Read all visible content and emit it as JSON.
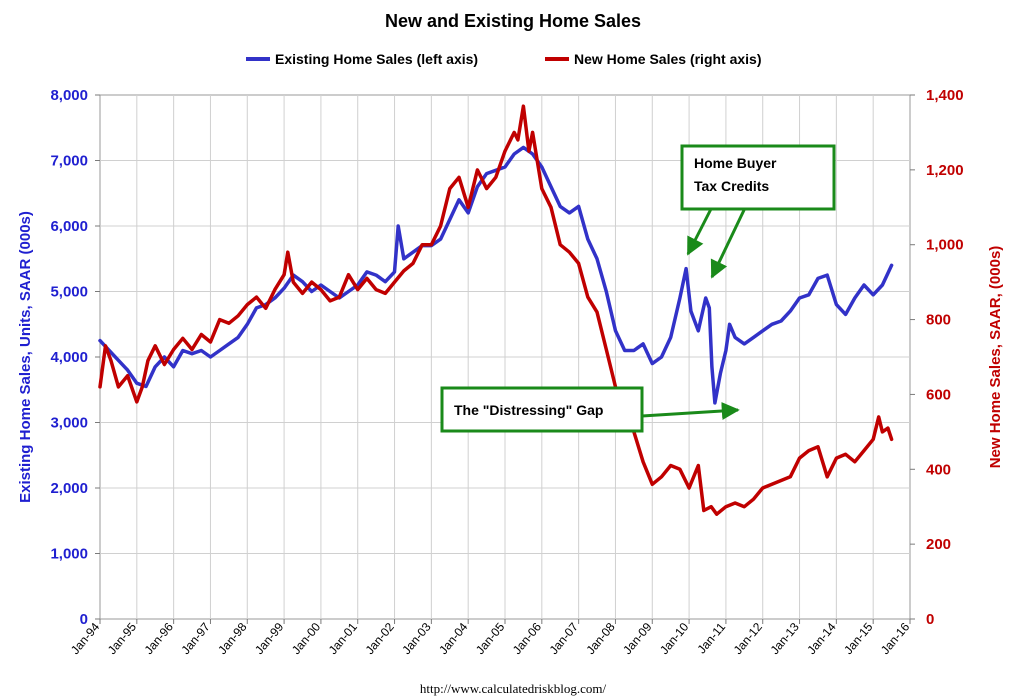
{
  "chart_data": {
    "type": "line",
    "title": "New and Existing Home Sales",
    "ylabel_left": "Existing Home Sales, Units, SAAR (000s)",
    "ylabel_right": "New Home Sales, SAAR, (000s)",
    "ylim_left": [
      0,
      8000
    ],
    "ylim_right": [
      0,
      1400
    ],
    "yticks_left": [
      "0",
      "1,000",
      "2,000",
      "3,000",
      "4,000",
      "5,000",
      "6,000",
      "7,000",
      "8,000"
    ],
    "yticks_right": [
      "0",
      "200",
      "400",
      "600",
      "800",
      "1,000",
      "1,200",
      "1,400"
    ],
    "xticks": [
      "Jan-94",
      "Jan-95",
      "Jan-96",
      "Jan-97",
      "Jan-98",
      "Jan-99",
      "Jan-00",
      "Jan-01",
      "Jan-02",
      "Jan-03",
      "Jan-04",
      "Jan-05",
      "Jan-06",
      "Jan-07",
      "Jan-08",
      "Jan-09",
      "Jan-10",
      "Jan-11",
      "Jan-12",
      "Jan-13",
      "Jan-14",
      "Jan-15",
      "Jan-16"
    ],
    "x_start": 1994.0,
    "x_end": 2016.0,
    "grid": true,
    "legend_position": "top",
    "series": [
      {
        "name": "Existing Home Sales (left axis)",
        "axis": "left",
        "color": "#3232c8",
        "points": [
          [
            1994.0,
            4250
          ],
          [
            1994.25,
            4100
          ],
          [
            1994.5,
            3950
          ],
          [
            1994.75,
            3800
          ],
          [
            1995.0,
            3600
          ],
          [
            1995.25,
            3550
          ],
          [
            1995.5,
            3850
          ],
          [
            1995.75,
            4000
          ],
          [
            1996.0,
            3850
          ],
          [
            1996.25,
            4100
          ],
          [
            1996.5,
            4050
          ],
          [
            1996.75,
            4100
          ],
          [
            1997.0,
            4000
          ],
          [
            1997.25,
            4100
          ],
          [
            1997.5,
            4200
          ],
          [
            1997.75,
            4300
          ],
          [
            1998.0,
            4500
          ],
          [
            1998.25,
            4750
          ],
          [
            1998.5,
            4800
          ],
          [
            1998.75,
            4900
          ],
          [
            1999.0,
            5050
          ],
          [
            1999.25,
            5250
          ],
          [
            1999.5,
            5150
          ],
          [
            1999.75,
            5000
          ],
          [
            2000.0,
            5100
          ],
          [
            2000.25,
            5000
          ],
          [
            2000.5,
            4900
          ],
          [
            2000.75,
            5000
          ],
          [
            2001.0,
            5100
          ],
          [
            2001.25,
            5300
          ],
          [
            2001.5,
            5250
          ],
          [
            2001.75,
            5150
          ],
          [
            2002.0,
            5300
          ],
          [
            2002.1,
            6000
          ],
          [
            2002.25,
            5500
          ],
          [
            2002.5,
            5600
          ],
          [
            2002.75,
            5700
          ],
          [
            2003.0,
            5700
          ],
          [
            2003.25,
            5800
          ],
          [
            2003.5,
            6100
          ],
          [
            2003.75,
            6400
          ],
          [
            2004.0,
            6200
          ],
          [
            2004.25,
            6600
          ],
          [
            2004.5,
            6800
          ],
          [
            2004.75,
            6850
          ],
          [
            2005.0,
            6900
          ],
          [
            2005.25,
            7100
          ],
          [
            2005.5,
            7200
          ],
          [
            2005.75,
            7100
          ],
          [
            2006.0,
            6900
          ],
          [
            2006.25,
            6600
          ],
          [
            2006.5,
            6300
          ],
          [
            2006.75,
            6200
          ],
          [
            2007.0,
            6300
          ],
          [
            2007.25,
            5800
          ],
          [
            2007.5,
            5500
          ],
          [
            2007.75,
            5000
          ],
          [
            2008.0,
            4400
          ],
          [
            2008.25,
            4100
          ],
          [
            2008.5,
            4100
          ],
          [
            2008.75,
            4200
          ],
          [
            2009.0,
            3900
          ],
          [
            2009.25,
            4000
          ],
          [
            2009.5,
            4300
          ],
          [
            2009.75,
            4900
          ],
          [
            2009.92,
            5350
          ],
          [
            2010.05,
            4700
          ],
          [
            2010.25,
            4400
          ],
          [
            2010.45,
            4900
          ],
          [
            2010.55,
            4750
          ],
          [
            2010.62,
            3850
          ],
          [
            2010.7,
            3300
          ],
          [
            2010.85,
            3750
          ],
          [
            2011.0,
            4100
          ],
          [
            2011.1,
            4500
          ],
          [
            2011.25,
            4300
          ],
          [
            2011.5,
            4200
          ],
          [
            2011.75,
            4300
          ],
          [
            2012.0,
            4400
          ],
          [
            2012.25,
            4500
          ],
          [
            2012.5,
            4550
          ],
          [
            2012.75,
            4700
          ],
          [
            2013.0,
            4900
          ],
          [
            2013.25,
            4950
          ],
          [
            2013.5,
            5200
          ],
          [
            2013.75,
            5250
          ],
          [
            2014.0,
            4800
          ],
          [
            2014.25,
            4650
          ],
          [
            2014.5,
            4900
          ],
          [
            2014.75,
            5100
          ],
          [
            2015.0,
            4950
          ],
          [
            2015.25,
            5100
          ],
          [
            2015.5,
            5400
          ]
        ]
      },
      {
        "name": "New Home Sales (right axis)",
        "axis": "right",
        "color": "#c00000",
        "points": [
          [
            1994.0,
            620
          ],
          [
            1994.15,
            730
          ],
          [
            1994.3,
            690
          ],
          [
            1994.5,
            620
          ],
          [
            1994.75,
            650
          ],
          [
            1995.0,
            580
          ],
          [
            1995.15,
            620
          ],
          [
            1995.3,
            690
          ],
          [
            1995.5,
            730
          ],
          [
            1995.75,
            680
          ],
          [
            1996.0,
            720
          ],
          [
            1996.25,
            750
          ],
          [
            1996.5,
            720
          ],
          [
            1996.75,
            760
          ],
          [
            1997.0,
            740
          ],
          [
            1997.25,
            800
          ],
          [
            1997.5,
            790
          ],
          [
            1997.75,
            810
          ],
          [
            1998.0,
            840
          ],
          [
            1998.25,
            860
          ],
          [
            1998.5,
            830
          ],
          [
            1998.75,
            880
          ],
          [
            1999.0,
            920
          ],
          [
            1999.1,
            980
          ],
          [
            1999.25,
            900
          ],
          [
            1999.5,
            870
          ],
          [
            1999.75,
            900
          ],
          [
            2000.0,
            880
          ],
          [
            2000.25,
            850
          ],
          [
            2000.5,
            860
          ],
          [
            2000.75,
            920
          ],
          [
            2001.0,
            880
          ],
          [
            2001.25,
            910
          ],
          [
            2001.5,
            880
          ],
          [
            2001.75,
            870
          ],
          [
            2002.0,
            900
          ],
          [
            2002.25,
            930
          ],
          [
            2002.5,
            950
          ],
          [
            2002.75,
            1000
          ],
          [
            2003.0,
            1000
          ],
          [
            2003.25,
            1050
          ],
          [
            2003.5,
            1150
          ],
          [
            2003.75,
            1180
          ],
          [
            2004.0,
            1100
          ],
          [
            2004.25,
            1200
          ],
          [
            2004.5,
            1150
          ],
          [
            2004.75,
            1180
          ],
          [
            2005.0,
            1250
          ],
          [
            2005.25,
            1300
          ],
          [
            2005.35,
            1280
          ],
          [
            2005.5,
            1370
          ],
          [
            2005.65,
            1250
          ],
          [
            2005.75,
            1300
          ],
          [
            2006.0,
            1150
          ],
          [
            2006.25,
            1100
          ],
          [
            2006.5,
            1000
          ],
          [
            2006.75,
            980
          ],
          [
            2007.0,
            950
          ],
          [
            2007.25,
            860
          ],
          [
            2007.5,
            820
          ],
          [
            2007.75,
            720
          ],
          [
            2008.0,
            620
          ],
          [
            2008.25,
            560
          ],
          [
            2008.5,
            500
          ],
          [
            2008.75,
            420
          ],
          [
            2009.0,
            360
          ],
          [
            2009.25,
            380
          ],
          [
            2009.5,
            410
          ],
          [
            2009.75,
            400
          ],
          [
            2010.0,
            350
          ],
          [
            2010.25,
            410
          ],
          [
            2010.4,
            290
          ],
          [
            2010.6,
            300
          ],
          [
            2010.75,
            280
          ],
          [
            2011.0,
            300
          ],
          [
            2011.25,
            310
          ],
          [
            2011.5,
            300
          ],
          [
            2011.75,
            320
          ],
          [
            2012.0,
            350
          ],
          [
            2012.25,
            360
          ],
          [
            2012.5,
            370
          ],
          [
            2012.75,
            380
          ],
          [
            2013.0,
            430
          ],
          [
            2013.25,
            450
          ],
          [
            2013.5,
            460
          ],
          [
            2013.75,
            380
          ],
          [
            2014.0,
            430
          ],
          [
            2014.25,
            440
          ],
          [
            2014.5,
            420
          ],
          [
            2014.75,
            450
          ],
          [
            2015.0,
            480
          ],
          [
            2015.15,
            540
          ],
          [
            2015.25,
            500
          ],
          [
            2015.4,
            510
          ],
          [
            2015.5,
            480
          ]
        ]
      }
    ],
    "annotations": [
      {
        "text_lines": [
          "Home Buyer",
          "Tax Credits"
        ]
      },
      {
        "text_lines": [
          "The \"Distressing\" Gap"
        ]
      }
    ],
    "source": "http://www.calculatedriskblog.com/"
  }
}
